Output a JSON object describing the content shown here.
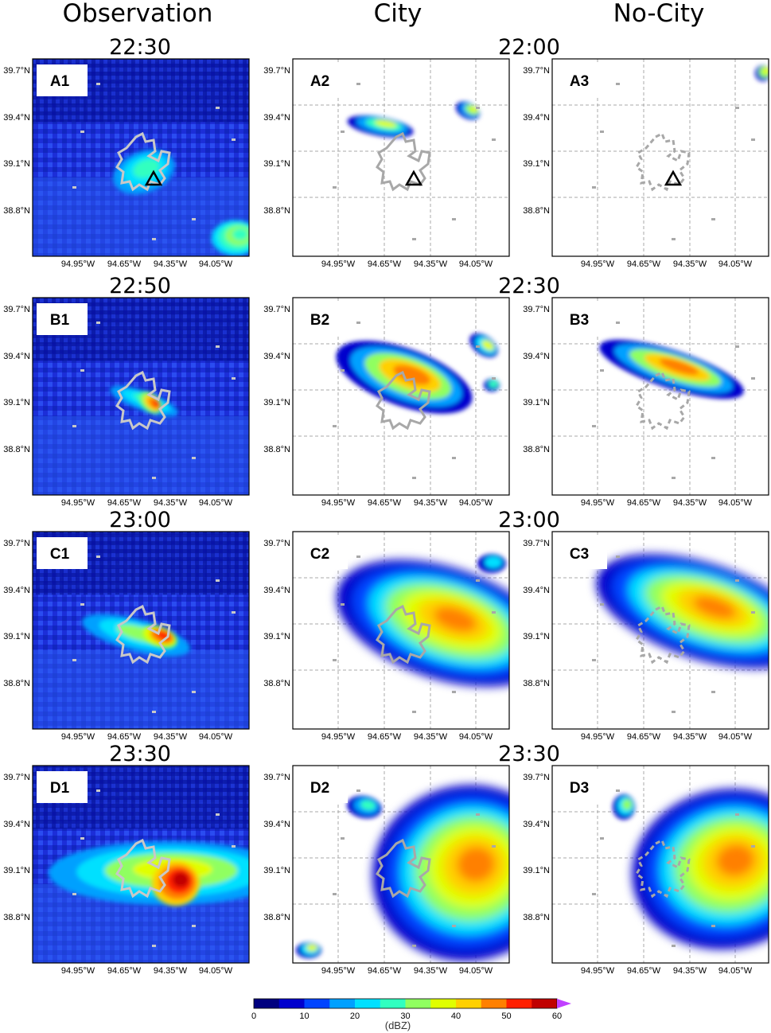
{
  "columns": [
    "Observation",
    "City",
    "No-City"
  ],
  "time_labels": {
    "observation": [
      "22:30",
      "22:50",
      "23:00",
      "23:30"
    ],
    "simulation": [
      "22:00",
      "22:30",
      "23:00",
      "23:30"
    ]
  },
  "panel_labels": [
    [
      "A1",
      "A2",
      "A3"
    ],
    [
      "B1",
      "B2",
      "B3"
    ],
    [
      "C1",
      "C2",
      "C3"
    ],
    [
      "D1",
      "D2",
      "D3"
    ]
  ],
  "axes": {
    "lon_ticks": [
      "94.95°W",
      "94.65°W",
      "94.35°W",
      "94.05°W"
    ],
    "lat_ticks": [
      "39.7°N",
      "39.4°N",
      "39.1°N",
      "38.8°N"
    ]
  },
  "colorbar": {
    "ticks": [
      "0",
      "10",
      "20",
      "30",
      "40",
      "50",
      "60"
    ],
    "label": "(dBZ)",
    "colors": [
      "#00007f",
      "#0000cd",
      "#0044ff",
      "#00a0ff",
      "#00e0ff",
      "#30ffc0",
      "#90ff60",
      "#e0ff00",
      "#ffd000",
      "#ff8000",
      "#ff2000",
      "#c00000",
      "#7f0000"
    ]
  },
  "marker": "triangle-icon"
}
